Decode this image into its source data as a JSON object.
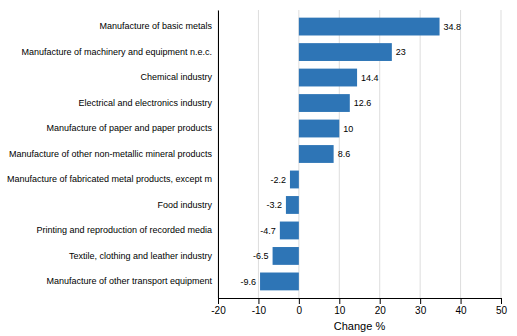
{
  "chart_data": {
    "type": "bar",
    "orientation": "horizontal",
    "categories": [
      "Manufacture of other transport equipment",
      "Textile, clothing and leather industry",
      "Printing and reproduction of recorded media",
      "Food industry",
      "Manufacture of fabricated metal products, except m",
      "Manufacture of other non-metallic mineral products",
      "Manufacture of paper and paper products",
      "Electrical and electronics industry",
      "Chemical industry",
      "Manufacture of machinery and equipment n.e.c.",
      "Manufacture of basic metals"
    ],
    "values": [
      -9.6,
      -6.5,
      -4.7,
      -3.2,
      -2.2,
      8.6,
      10,
      12.6,
      14.4,
      23,
      34.8
    ],
    "color": "#2E75B6",
    "xlabel": "Change %",
    "xlim": [
      -20,
      50
    ],
    "xticks": [
      -20,
      -10,
      0,
      10,
      20,
      30,
      40,
      50
    ],
    "grid": true,
    "data_labels": true
  }
}
